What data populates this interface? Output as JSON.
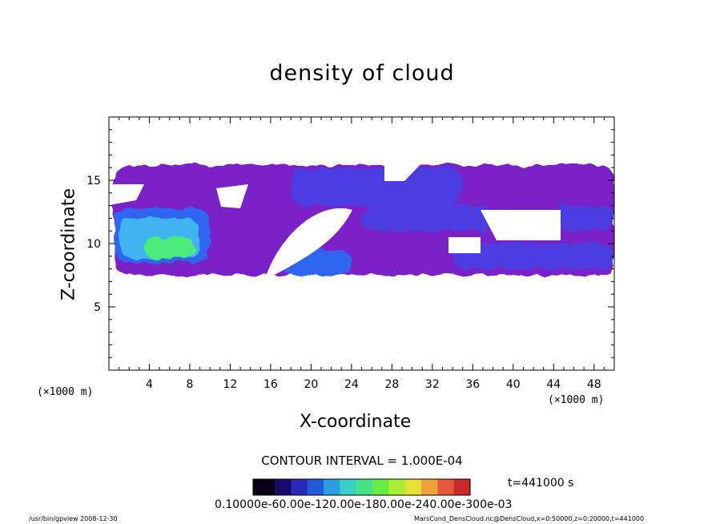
{
  "chart_data": {
    "type": "heatmap",
    "title": "density of cloud",
    "xlabel": "X-coordinate",
    "ylabel": "Z-coordinate",
    "x_unit_left": "(×1000 m)",
    "x_unit_right": "(×1000 m)",
    "xlim": [
      0,
      50
    ],
    "ylim": [
      0,
      20
    ],
    "x_ticks": [
      4,
      8,
      12,
      16,
      20,
      24,
      28,
      32,
      36,
      40,
      44,
      48
    ],
    "y_ticks": [
      5,
      10,
      15
    ],
    "x_tick_labels": [
      "4",
      "8",
      "12",
      "16",
      "20",
      "24",
      "28",
      "32",
      "36",
      "40",
      "44",
      "48"
    ],
    "y_tick_labels": [
      "5",
      "10",
      "15"
    ],
    "contour_interval": "CONTOUR INTERVAL = 1.000E-04",
    "time_label": "t=441000 s",
    "colorbar_labels": "0.10000e-60.00e-120.00e-180.00e-240.00e-300e-03",
    "colorbar_colors": [
      "#0a0016",
      "#1a0a6a",
      "#2a2ab8",
      "#1f5ad8",
      "#2a9ee0",
      "#3ccfc8",
      "#44e08a",
      "#66ee44",
      "#a8f034",
      "#e8e03a",
      "#f0a23a",
      "#e8583a",
      "#c82a2a"
    ],
    "region_colors": {
      "faint": "#7a22c8",
      "low": "#4c3ee0",
      "mid": "#2f66f0",
      "high": "#3fb3f0",
      "peak": "#48ec7a"
    },
    "cloud_blobs": [
      {
        "x": [
          0.5,
          50
        ],
        "z": [
          7.5,
          16.2
        ],
        "level": "faint"
      },
      {
        "x": [
          18,
          35
        ],
        "z": [
          13,
          16
        ],
        "level": "low"
      },
      {
        "x": [
          25,
          38
        ],
        "z": [
          11,
          13
        ],
        "level": "low"
      },
      {
        "x": [
          44,
          50
        ],
        "z": [
          11,
          13
        ],
        "level": "low"
      },
      {
        "x": [
          34,
          50
        ],
        "z": [
          8,
          10
        ],
        "level": "low"
      },
      {
        "x": [
          0.5,
          10
        ],
        "z": [
          8.5,
          12.8
        ],
        "level": "mid"
      },
      {
        "x": [
          17,
          24
        ],
        "z": [
          7.5,
          9.5
        ],
        "level": "mid"
      },
      {
        "x": [
          1,
          9
        ],
        "z": [
          8.8,
          12
        ],
        "level": "high"
      },
      {
        "x": [
          3.5,
          8.5
        ],
        "z": [
          8.8,
          10.5
        ],
        "level": "peak"
      }
    ]
  },
  "footer": {
    "left": "/usr/bin/gpview   2008-12-30",
    "right": "MarsCond_DensCloud.nc@DensCloud,x=0:50000,z=0:20000,t=441000"
  }
}
